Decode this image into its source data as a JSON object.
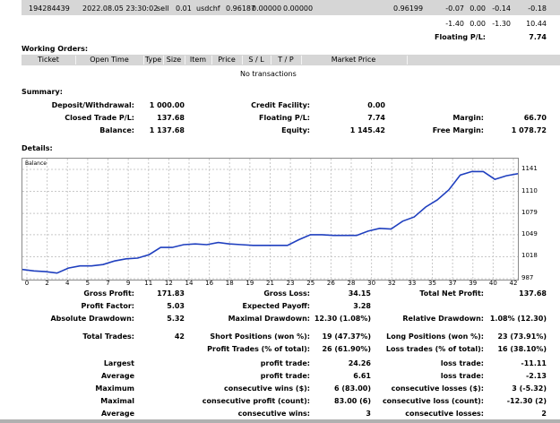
{
  "trade_row": {
    "ticket": "194284439",
    "time": "2022.08.05 23:30:02",
    "type": "sell",
    "size": "0.01",
    "item": "usdchf",
    "price": "0.96187",
    "sl": "0.00000",
    "tp": "0.00000",
    "close_price": "0.96199",
    "commission": "-0.07",
    "taxes": "0.00",
    "swap": "-0.14",
    "profit": "-0.18"
  },
  "totals_row": {
    "commission": "-1.40",
    "taxes": "0.00",
    "swap": "-1.30",
    "profit": "10.44"
  },
  "floating_row": {
    "label": "Floating P/L:",
    "value": "7.74"
  },
  "working_orders": {
    "title": "Working Orders:",
    "columns": [
      "Ticket",
      "Open Time",
      "Type",
      "Size",
      "Item",
      "Price",
      "S / L",
      "T / P",
      "Market Price"
    ],
    "empty_text": "No transactions"
  },
  "summary": {
    "title": "Summary:",
    "deposit_label": "Deposit/Withdrawal:",
    "deposit_value": "1 000.00",
    "credit_label": "Credit Facility:",
    "credit_value": "0.00",
    "closed_label": "Closed Trade P/L:",
    "closed_value": "137.68",
    "floating_label": "Floating P/L:",
    "floating_value": "7.74",
    "margin_label": "Margin:",
    "margin_value": "66.70",
    "balance_label": "Balance:",
    "balance_value": "1 137.68",
    "equity_label": "Equity:",
    "equity_value": "1 145.42",
    "free_margin_label": "Free Margin:",
    "free_margin_value": "1 078.72"
  },
  "details": {
    "title": "Details:",
    "chart_legend": "Balance"
  },
  "chart_data": {
    "type": "line",
    "title": "",
    "legend": [
      "Balance"
    ],
    "grid": true,
    "y_ticks": [
      "1141",
      "1110",
      "1079",
      "1049",
      "1018",
      "987"
    ],
    "ylim": [
      987,
      1141
    ],
    "x_ticks": [
      "0",
      "2",
      "4",
      "5",
      "7",
      "9",
      "11",
      "12",
      "14",
      "16",
      "18",
      "19",
      "21",
      "23",
      "25",
      "26",
      "28",
      "30",
      "32",
      "33",
      "35",
      "37",
      "39",
      "40",
      "42"
    ],
    "xlim": [
      0,
      43
    ],
    "series": [
      {
        "name": "Balance",
        "x": [
          0,
          1,
          2,
          3,
          4,
          5,
          6,
          7,
          8,
          9,
          10,
          11,
          12,
          13,
          14,
          15,
          16,
          17,
          18,
          19,
          20,
          21,
          22,
          23,
          24,
          25,
          26,
          27,
          28,
          29,
          30,
          31,
          32,
          33,
          34,
          35,
          36,
          37,
          38,
          39,
          40,
          41,
          42,
          43
        ],
        "values": [
          1000,
          998,
          997,
          995,
          1002,
          1005,
          1005,
          1007,
          1012,
          1015,
          1016,
          1021,
          1031,
          1031,
          1035,
          1036,
          1035,
          1038,
          1036,
          1035,
          1034,
          1034,
          1034,
          1034,
          1042,
          1049,
          1049,
          1048,
          1048,
          1048,
          1054,
          1058,
          1057,
          1068,
          1074,
          1088,
          1098,
          1112,
          1133,
          1138,
          1138,
          1127,
          1132,
          1135
        ]
      }
    ]
  },
  "stats": {
    "gross_profit_label": "Gross Profit:",
    "gross_profit": "171.83",
    "gross_loss_label": "Gross Loss:",
    "gross_loss": "34.15",
    "total_net_label": "Total Net Profit:",
    "total_net": "137.68",
    "profit_factor_label": "Profit Factor:",
    "profit_factor": "5.03",
    "expected_payoff_label": "Expected Payoff:",
    "expected_payoff": "3.28",
    "abs_dd_label": "Absolute Drawdown:",
    "abs_dd": "5.32",
    "max_dd_label": "Maximal Drawdown:",
    "max_dd": "12.30 (1.08%)",
    "rel_dd_label": "Relative Drawdown:",
    "rel_dd": "1.08% (12.30)",
    "total_trades_label": "Total Trades:",
    "total_trades": "42",
    "short_label": "Short Positions (won %):",
    "short": "19 (47.37%)",
    "long_label": "Long Positions (won %):",
    "long": "23 (73.91%)",
    "profit_trades_label": "Profit Trades (% of total):",
    "profit_trades": "26 (61.90%)",
    "loss_trades_label": "Loss trades (% of total):",
    "loss_trades": "16 (38.10%)",
    "largest_label": "Largest",
    "largest_profit_label": "profit trade:",
    "largest_profit": "24.26",
    "largest_loss_label": "loss trade:",
    "largest_loss": "-11.11",
    "average_label": "Average",
    "average_profit_label": "profit trade:",
    "average_profit": "6.61",
    "average_loss_label": "loss trade:",
    "average_loss": "-2.13",
    "maximum_label": "Maximum",
    "max_wins_label": "consecutive wins ($):",
    "max_wins": "6 (83.00)",
    "max_losses_label": "consecutive losses ($):",
    "max_losses": "3 (-5.32)",
    "maximal_label": "Maximal",
    "maximal_profit_label": "consecutive profit (count):",
    "maximal_profit": "83.00 (6)",
    "maximal_loss_label": "consecutive loss (count):",
    "maximal_loss": "-12.30 (2)",
    "avg_cons_label": "Average",
    "avg_cons_wins_label": "consecutive wins:",
    "avg_cons_wins": "3",
    "avg_cons_losses_label": "consecutive losses:",
    "avg_cons_losses": "2"
  }
}
